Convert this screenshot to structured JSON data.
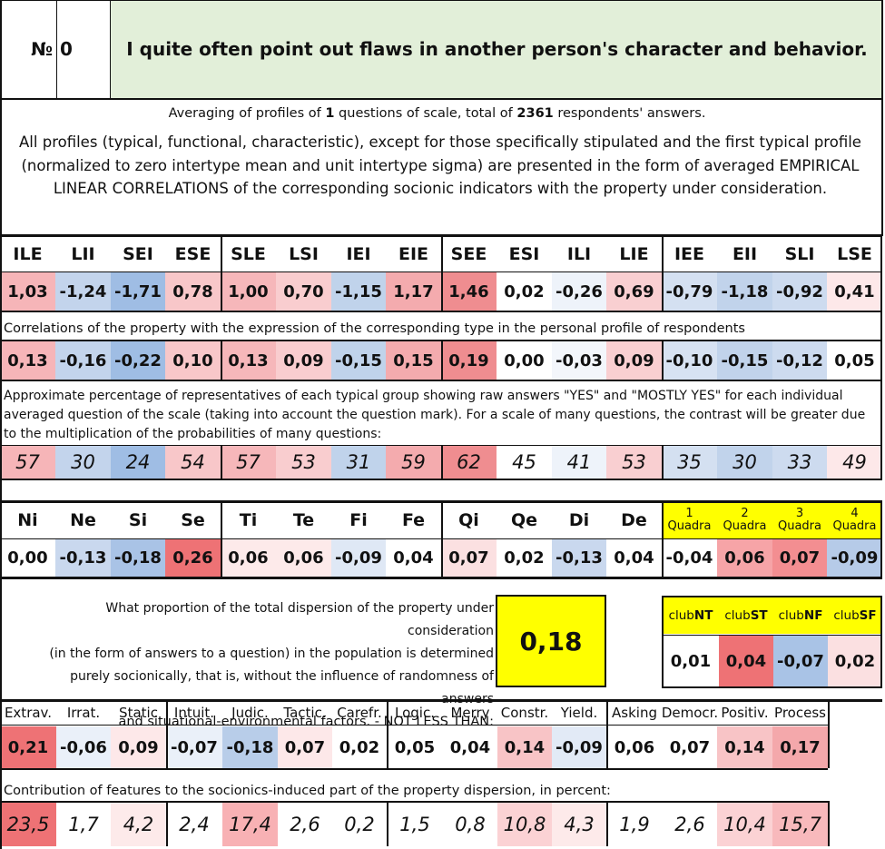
{
  "header": {
    "number_label": "№",
    "number_value": "0",
    "title": "I quite often point out flaws in another person's character and behavior."
  },
  "summary": {
    "part1": "Averaging of profiles of ",
    "questions": "1",
    "part2": " questions of scale, total of ",
    "respondents": "2361",
    "part3": " respondents' answers."
  },
  "description": "All profiles (typical, functional, characteristic), except for those specifically stipulated and the first typical profile (normalized to zero intertype mean and unit intertype sigma) are presented in the form of averaged EMPIRICAL LINEAR CORRELATIONS of the corresponding socionic indicators with the property under consideration.",
  "types": {
    "labels": [
      "ILE",
      "LII",
      "SEI",
      "ESE",
      "SLE",
      "LSI",
      "IEI",
      "EIE",
      "SEE",
      "ESI",
      "ILI",
      "LIE",
      "IEE",
      "EII",
      "SLI",
      "LSE"
    ],
    "values": [
      "1,03",
      "-1,24",
      "-1,71",
      "0,78",
      "1,00",
      "0,70",
      "-1,15",
      "1,17",
      "1,46",
      "0,02",
      "-0,26",
      "0,69",
      "-0,79",
      "-1,18",
      "-0,92",
      "0,41"
    ],
    "colors": [
      "#f6b5b8",
      "#c3d4ec",
      "#9fbde4",
      "#f8c7c9",
      "#f6b7ba",
      "#f9cdcf",
      "#c0d3eb",
      "#f4abae",
      "#ef8d90",
      "#ffffff",
      "#eef3fa",
      "#f9cfd1",
      "#d4e0f1",
      "#c1d3eb",
      "#cddbef",
      "#fde8e9"
    ]
  },
  "correlations": {
    "caption": "Correlations of the property with the expression of the corresponding type in the personal profile of respondents",
    "values": [
      "0,13",
      "-0,16",
      "-0,22",
      "0,10",
      "0,13",
      "0,09",
      "-0,15",
      "0,15",
      "0,19",
      "0,00",
      "-0,03",
      "0,09",
      "-0,10",
      "-0,15",
      "-0,12",
      "0,05"
    ],
    "colors": [
      "#f6b5b8",
      "#c3d4ec",
      "#9fbde4",
      "#f8c7c9",
      "#f6b7ba",
      "#f9cdcf",
      "#c0d3eb",
      "#f4abae",
      "#ef8d90",
      "#ffffff",
      "#f3f6fb",
      "#f9cfd1",
      "#d7e2f2",
      "#c1d3eb",
      "#cddbef",
      "#ffffff"
    ]
  },
  "percentages": {
    "caption": "Approximate percentage of representatives of each typical group showing raw answers \"YES\" and \"MOSTLY YES\" for each individual averaged question of the scale (taking into account the question mark). For a scale of many questions, the contrast will be greater due to the multiplication of the probabilities of many questions:",
    "values": [
      "57",
      "30",
      "24",
      "54",
      "57",
      "53",
      "31",
      "59",
      "62",
      "45",
      "41",
      "53",
      "35",
      "30",
      "33",
      "49"
    ],
    "colors": [
      "#f6b5b8",
      "#c3d4ec",
      "#9fbde4",
      "#f8c7c9",
      "#f6b7ba",
      "#f9cdcf",
      "#c0d3eb",
      "#f4abae",
      "#ef8d90",
      "#ffffff",
      "#eef3fa",
      "#f9cfd1",
      "#d4e0f1",
      "#c1d3eb",
      "#cddbef",
      "#fde8e9"
    ]
  },
  "functions": {
    "labels": [
      "Ni",
      "Ne",
      "Si",
      "Se",
      "Ti",
      "Te",
      "Fi",
      "Fe",
      "Qi",
      "Qe",
      "Di",
      "De"
    ],
    "values": [
      "0,00",
      "-0,13",
      "-0,18",
      "0,26",
      "0,06",
      "0,06",
      "-0,09",
      "0,04",
      "0,07",
      "0,02",
      "-0,13",
      "0,04"
    ],
    "colors": [
      "#ffffff",
      "#c9d8ee",
      "#a9c3e6",
      "#ee7275",
      "#fdeaea",
      "#fdeaea",
      "#dfe8f5",
      "#ffffff",
      "#fbe0e1",
      "#ffffff",
      "#c9d8ee",
      "#ffffff"
    ]
  },
  "quadras": {
    "labels": [
      [
        "1",
        "Quadra"
      ],
      [
        "2",
        "Quadra"
      ],
      [
        "3",
        "Quadra"
      ],
      [
        "4",
        "Quadra"
      ]
    ],
    "values": [
      "-0,04",
      "0,06",
      "0,07",
      "-0,09"
    ],
    "colors": [
      "#ffffff",
      "#f6a4a7",
      "#f38e91",
      "#b6cbe8"
    ],
    "header_color": "#ffff00"
  },
  "dispersion": {
    "lines": [
      "What proportion of the total dispersion of the property under consideration",
      "(in the form of answers to a question) in the population is determined",
      "purely socionically, that is, without the influence of randomness of answers",
      "and situational-environmental factors. - NOT LESS THAN:"
    ],
    "value": "0,18",
    "box_color": "#ffff00"
  },
  "clubs": {
    "labels": [
      [
        "club",
        "NT"
      ],
      [
        "club",
        "ST"
      ],
      [
        "club",
        "NF"
      ],
      [
        "club",
        "SF"
      ]
    ],
    "values": [
      "0,01",
      "0,04",
      "-0,07",
      "0,02"
    ],
    "colors": [
      "#ffffff",
      "#ee7275",
      "#a9c3e6",
      "#fbe0e1"
    ]
  },
  "features": {
    "labels": [
      "Extrav.",
      "Irrat.",
      "Static",
      "Intuit.",
      "Judic.",
      "Tactic.",
      "Carefr.",
      "Logic.",
      "Merry",
      "Constr.",
      "Yield.",
      "Asking",
      "Democr.",
      "Positiv.",
      "Process"
    ],
    "values": [
      "0,21",
      "-0,06",
      "0,09",
      "-0,07",
      "-0,18",
      "0,07",
      "0,02",
      "0,05",
      "0,04",
      "0,14",
      "-0,09",
      "0,06",
      "0,07",
      "0,14",
      "0,17"
    ],
    "colors": [
      "#ee7275",
      "#eaf0f9",
      "#fde8e9",
      "#eaf0f9",
      "#b8cde9",
      "#fde8e9",
      "#ffffff",
      "#ffffff",
      "#ffffff",
      "#f8c4c6",
      "#e2eaf6",
      "#ffffff",
      "#ffffff",
      "#f8c4c6",
      "#f4a8ab"
    ]
  },
  "contribution": {
    "caption": "Contribution of features to the socionics-induced part of the property dispersion, in percent:",
    "values": [
      "23,5",
      "1,7",
      "4,2",
      "2,4",
      "17,4",
      "2,6",
      "0,2",
      "1,5",
      "0,8",
      "10,8",
      "4,3",
      "1,9",
      "2,6",
      "10,4",
      "15,7"
    ],
    "colors": [
      "#ee7275",
      "#ffffff",
      "#fdeaea",
      "#ffffff",
      "#f8b1b4",
      "#ffffff",
      "#ffffff",
      "#ffffff",
      "#ffffff",
      "#fbd2d4",
      "#fdeaea",
      "#ffffff",
      "#ffffff",
      "#fbd2d4",
      "#f8b9bc"
    ]
  }
}
